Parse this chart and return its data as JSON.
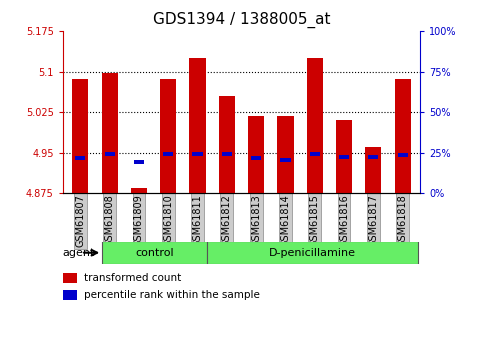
{
  "title": "GDS1394 / 1388005_at",
  "samples": [
    "GSM61807",
    "GSM61808",
    "GSM61809",
    "GSM61810",
    "GSM61811",
    "GSM61812",
    "GSM61813",
    "GSM61814",
    "GSM61815",
    "GSM61816",
    "GSM61817",
    "GSM61818"
  ],
  "red_values": [
    5.087,
    5.097,
    4.885,
    5.087,
    5.125,
    5.055,
    5.017,
    5.017,
    5.125,
    5.01,
    4.96,
    5.087
  ],
  "blue_values": [
    4.94,
    4.947,
    4.933,
    4.947,
    4.947,
    4.947,
    4.94,
    4.937,
    4.947,
    4.942,
    4.942,
    4.945
  ],
  "ymin": 4.875,
  "ymax": 5.175,
  "yticks_left": [
    4.875,
    4.95,
    5.025,
    5.1,
    5.175
  ],
  "yticks_right_pct": [
    0,
    25,
    50,
    75,
    100
  ],
  "grid_lines": [
    5.1,
    5.025,
    4.95
  ],
  "bar_color": "#cc0000",
  "blue_color": "#0000cc",
  "bar_width": 0.55,
  "blue_bar_width": 0.35,
  "blue_bar_height": 0.007,
  "control_count": 4,
  "control_label": "control",
  "treatment_label": "D-penicillamine",
  "agent_label": "agent",
  "legend_red": "transformed count",
  "legend_blue": "percentile rank within the sample",
  "group_bg_color": "#66ee66",
  "tick_bg_color": "#cccccc",
  "title_fontsize": 11,
  "tick_label_fontsize": 7,
  "right_axis_color": "#0000cc",
  "left_axis_color": "#cc0000",
  "legend_fontsize": 7.5
}
